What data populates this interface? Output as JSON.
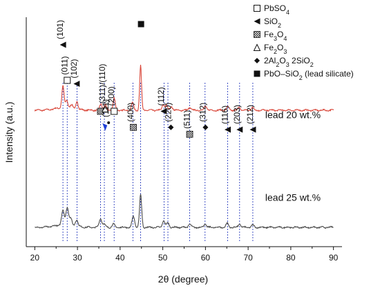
{
  "chart_data": {
    "type": "line",
    "xlabel": "2θ (degree)",
    "ylabel": "Intensity (a.u.)",
    "xlim": [
      18,
      92
    ],
    "xticks": [
      "20",
      "30",
      "40",
      "50",
      "60",
      "70",
      "80",
      "90"
    ],
    "grid": false,
    "series": [
      {
        "name": "lead 20 wt.%",
        "color": "#d9473a",
        "baseline": 0.64,
        "noise": 0.1,
        "peaks": [
          {
            "x": 26.6,
            "h": 1.95,
            "w": 0.25
          },
          {
            "x": 27.5,
            "h": 0.7,
            "w": 0.25
          },
          {
            "x": 28.6,
            "h": 0.3,
            "w": 0.3
          },
          {
            "x": 29.9,
            "h": 0.7,
            "w": 0.25
          },
          {
            "x": 35.5,
            "h": 0.6,
            "w": 0.25
          },
          {
            "x": 36.5,
            "h": 0.55,
            "w": 0.25
          },
          {
            "x": 38.6,
            "h": 1.1,
            "w": 0.25
          },
          {
            "x": 42.9,
            "h": 0.7,
            "w": 0.25
          },
          {
            "x": 44.8,
            "h": 4.1,
            "w": 0.22
          },
          {
            "x": 50.1,
            "h": 0.55,
            "w": 0.25
          },
          {
            "x": 50.8,
            "h": 0.45,
            "w": 0.25
          },
          {
            "x": 52.0,
            "h": 0.35,
            "w": 0.3
          },
          {
            "x": 56.3,
            "h": 0.25,
            "w": 0.3
          },
          {
            "x": 60.0,
            "h": 0.4,
            "w": 0.3
          },
          {
            "x": 65.2,
            "h": 0.3,
            "w": 0.3
          },
          {
            "x": 67.9,
            "h": 0.25,
            "w": 0.3
          },
          {
            "x": 71.0,
            "h": 0.25,
            "w": 0.3
          }
        ]
      },
      {
        "name": "lead 25 wt.%",
        "color": "#4a4a4a",
        "baseline": 0.0,
        "noise": 0.1,
        "peaks": [
          {
            "x": 26.6,
            "h": 1.3,
            "w": 0.3
          },
          {
            "x": 27.6,
            "h": 1.6,
            "w": 0.3
          },
          {
            "x": 28.4,
            "h": 0.6,
            "w": 0.3
          },
          {
            "x": 29.8,
            "h": 0.6,
            "w": 0.3
          },
          {
            "x": 35.4,
            "h": 0.8,
            "w": 0.3
          },
          {
            "x": 36.2,
            "h": 0.3,
            "w": 0.3
          },
          {
            "x": 38.4,
            "h": 0.3,
            "w": 0.3
          },
          {
            "x": 43.1,
            "h": 1.0,
            "w": 0.3
          },
          {
            "x": 44.8,
            "h": 3.0,
            "w": 0.25
          },
          {
            "x": 50.2,
            "h": 0.6,
            "w": 0.3
          },
          {
            "x": 51.2,
            "h": 0.4,
            "w": 0.3
          },
          {
            "x": 56.3,
            "h": 0.3,
            "w": 0.3
          },
          {
            "x": 59.9,
            "h": 0.3,
            "w": 0.3
          },
          {
            "x": 65.1,
            "h": 0.35,
            "w": 0.3
          },
          {
            "x": 68.0,
            "h": 0.3,
            "w": 0.3
          },
          {
            "x": 71.1,
            "h": 0.2,
            "w": 0.3
          }
        ]
      }
    ],
    "reference_lines": [
      26.6,
      27.6,
      29.9,
      35.4,
      36.3,
      38.6,
      43.0,
      44.8,
      50.3,
      51.2,
      56.3,
      59.9,
      65.2,
      68.0,
      71.1
    ],
    "reference_line_color": "#2c3fbf",
    "annotations": [
      {
        "symbol": "filled-triangle",
        "x": 26.6,
        "level": 0.88,
        "text": "(101)"
      },
      {
        "symbol": "open-square",
        "x": 27.6,
        "level": 0.725,
        "text": "(011)"
      },
      {
        "symbol": "filled-triangle",
        "x": 29.8,
        "level": 0.71,
        "text": "(102)"
      },
      {
        "symbol": "hatched-square",
        "x": 35.4,
        "level": 0.59,
        "text": ""
      },
      {
        "symbol": "open-triangle",
        "x": 36.5,
        "level": 0.6,
        "text": "(311)/(110)"
      },
      {
        "symbol": "blue-arrow",
        "x": 36.5,
        "level": 0.52,
        "text": ""
      },
      {
        "symbol": "dot",
        "x": 37.3,
        "level": 0.54,
        "text": "(111)"
      },
      {
        "symbol": "open-square",
        "x": 38.6,
        "level": 0.59,
        "text": "(200)"
      },
      {
        "symbol": "hatched-square",
        "x": 43.1,
        "level": 0.52,
        "text": "(400)"
      },
      {
        "symbol": "filled-square",
        "x": 44.9,
        "level": 0.97,
        "text": ""
      },
      {
        "symbol": "filled-triangle",
        "x": 50.2,
        "level": 0.59,
        "text": "(112)"
      },
      {
        "symbol": "diamond",
        "x": 51.9,
        "level": 0.52,
        "text": "(220)"
      },
      {
        "symbol": "hatched-square",
        "x": 56.3,
        "level": 0.49,
        "text": "(511)"
      },
      {
        "symbol": "diamond",
        "x": 60.0,
        "level": 0.52,
        "text": "(312)"
      },
      {
        "symbol": "filled-triangle",
        "x": 65.2,
        "level": 0.51,
        "text": "(116)"
      },
      {
        "symbol": "filled-triangle",
        "x": 68.0,
        "level": 0.51,
        "text": "(203)"
      },
      {
        "symbol": "filled-triangle",
        "x": 71.1,
        "level": 0.51,
        "text": "(212)"
      }
    ],
    "legend": {
      "placement": "top-right",
      "entries": [
        {
          "symbol": "open-square",
          "label": "PbSO",
          "sub": "4",
          "suffix": ""
        },
        {
          "symbol": "filled-triangle",
          "label": "SiO",
          "sub": "2",
          "suffix": ""
        },
        {
          "symbol": "hatched-square",
          "label": "Fe",
          "sub": "3",
          "mid": "O",
          "sub2": "4",
          "suffix": ""
        },
        {
          "symbol": "open-triangle",
          "label": "Fe",
          "sub": "2",
          "mid": "O",
          "sub2": "3",
          "suffix": ""
        },
        {
          "symbol": "diamond",
          "label": "2Al",
          "sub": "2",
          "mid": "O",
          "sub2": "3",
          "suffix": " 2SiO",
          "sub3": "2"
        },
        {
          "symbol": "filled-square",
          "label": "PbO–SiO",
          "sub": "2",
          "suffix": " (lead silicate)"
        }
      ]
    },
    "series_labels": [
      {
        "text": "lead 20 wt.%",
        "x": 80.5,
        "level": 0.56
      },
      {
        "text": "lead 25 wt.%",
        "x": 80.5,
        "level": 0.2
      }
    ]
  }
}
